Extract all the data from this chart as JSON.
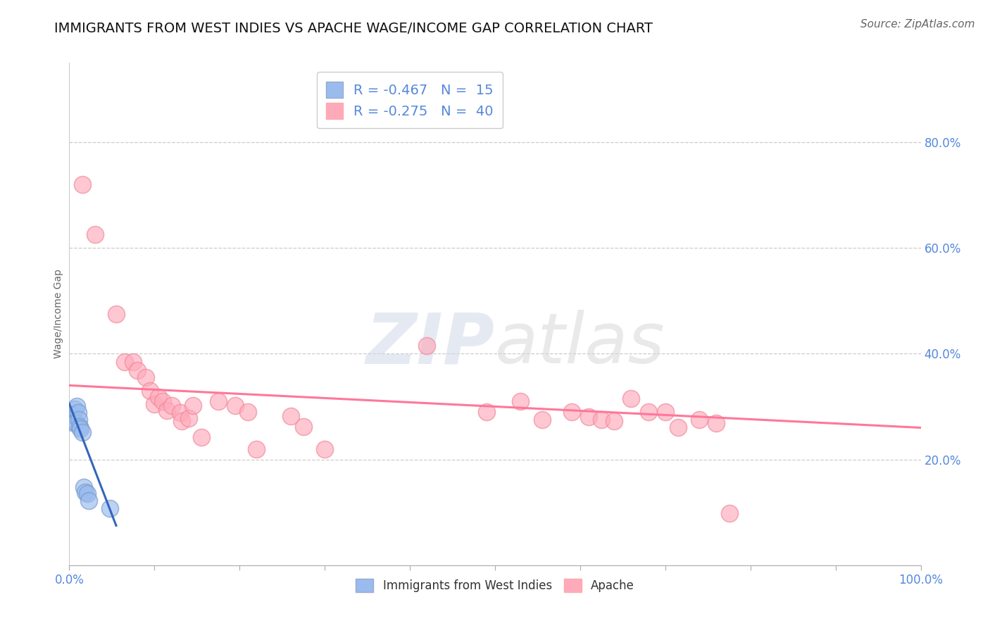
{
  "title": "IMMIGRANTS FROM WEST INDIES VS APACHE WAGE/INCOME GAP CORRELATION CHART",
  "source": "Source: ZipAtlas.com",
  "ylabel": "Wage/Income Gap",
  "background_color": "#ffffff",
  "watermark": "ZIPatlas",
  "legend_r_blue": "R = -0.467",
  "legend_n_blue": "N =  15",
  "legend_r_pink": "R = -0.275",
  "legend_n_pink": "N =  40",
  "blue_color": "#99bbee",
  "pink_color": "#ffaabb",
  "blue_line_color": "#3366bb",
  "pink_line_color": "#ff7799",
  "grid_color": "#cccccc",
  "title_color": "#111111",
  "axis_label_color": "#5588dd",
  "blue_points": [
    [
      0.004,
      0.285
    ],
    [
      0.004,
      0.27
    ],
    [
      0.006,
      0.295
    ],
    [
      0.007,
      0.27
    ],
    [
      0.009,
      0.3
    ],
    [
      0.01,
      0.288
    ],
    [
      0.011,
      0.275
    ],
    [
      0.012,
      0.262
    ],
    [
      0.013,
      0.258
    ],
    [
      0.015,
      0.252
    ],
    [
      0.017,
      0.148
    ],
    [
      0.019,
      0.138
    ],
    [
      0.021,
      0.135
    ],
    [
      0.023,
      0.122
    ],
    [
      0.048,
      0.108
    ]
  ],
  "pink_points": [
    [
      0.015,
      0.72
    ],
    [
      0.03,
      0.625
    ],
    [
      0.055,
      0.475
    ],
    [
      0.065,
      0.385
    ],
    [
      0.075,
      0.385
    ],
    [
      0.08,
      0.368
    ],
    [
      0.09,
      0.355
    ],
    [
      0.095,
      0.33
    ],
    [
      0.1,
      0.305
    ],
    [
      0.105,
      0.318
    ],
    [
      0.11,
      0.31
    ],
    [
      0.115,
      0.292
    ],
    [
      0.12,
      0.302
    ],
    [
      0.13,
      0.288
    ],
    [
      0.132,
      0.272
    ],
    [
      0.14,
      0.278
    ],
    [
      0.145,
      0.302
    ],
    [
      0.155,
      0.242
    ],
    [
      0.175,
      0.31
    ],
    [
      0.195,
      0.302
    ],
    [
      0.21,
      0.29
    ],
    [
      0.22,
      0.22
    ],
    [
      0.26,
      0.282
    ],
    [
      0.275,
      0.262
    ],
    [
      0.3,
      0.22
    ],
    [
      0.42,
      0.415
    ],
    [
      0.49,
      0.29
    ],
    [
      0.53,
      0.31
    ],
    [
      0.555,
      0.275
    ],
    [
      0.59,
      0.29
    ],
    [
      0.61,
      0.28
    ],
    [
      0.625,
      0.275
    ],
    [
      0.64,
      0.272
    ],
    [
      0.66,
      0.315
    ],
    [
      0.68,
      0.29
    ],
    [
      0.7,
      0.29
    ],
    [
      0.715,
      0.26
    ],
    [
      0.74,
      0.275
    ],
    [
      0.76,
      0.268
    ],
    [
      0.775,
      0.098
    ]
  ],
  "blue_trend_x": [
    0.0,
    0.055
  ],
  "blue_trend_y": [
    0.305,
    0.075
  ],
  "pink_trend_x": [
    0.0,
    1.0
  ],
  "pink_trend_y": [
    0.34,
    0.26
  ],
  "xlim": [
    0.0,
    1.0
  ],
  "ylim": [
    0.0,
    0.95
  ],
  "xticks": [
    0.0,
    0.1,
    0.2,
    0.3,
    0.4,
    0.5,
    0.6,
    0.7,
    0.8,
    0.9,
    1.0
  ],
  "yticks_right": [
    0.2,
    0.4,
    0.6,
    0.8
  ],
  "ytick_labels_right": [
    "20.0%",
    "40.0%",
    "60.0%",
    "80.0%"
  ],
  "xtick_labels": [
    "0.0%",
    "",
    "",
    "",
    "",
    "",
    "",
    "",
    "",
    "",
    "100.0%"
  ],
  "title_fontsize": 14,
  "axis_label_fontsize": 10,
  "tick_fontsize": 12,
  "source_fontsize": 11,
  "legend_fontsize": 14
}
